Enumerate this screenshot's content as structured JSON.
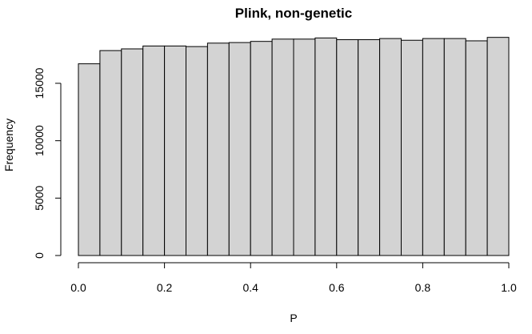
{
  "chart_data": {
    "type": "bar",
    "title": "Plink, non-genetic",
    "xlabel": "P",
    "ylabel": "Frequency",
    "bin_edges": [
      0,
      0.05,
      0.1,
      0.15,
      0.2,
      0.25,
      0.3,
      0.35,
      0.4,
      0.45,
      0.5,
      0.55,
      0.6,
      0.65,
      0.7,
      0.75,
      0.8,
      0.85,
      0.9,
      0.95,
      1.0
    ],
    "values": [
      16700,
      17850,
      18000,
      18250,
      18250,
      18200,
      18500,
      18550,
      18650,
      18850,
      18850,
      18950,
      18800,
      18800,
      18900,
      18750,
      18900,
      18900,
      18700,
      19000
    ],
    "xlim": [
      0,
      1
    ],
    "ylim": [
      0,
      19000
    ],
    "x_ticks": [
      0.0,
      0.2,
      0.4,
      0.6,
      0.8,
      1.0
    ],
    "x_tick_labels": [
      "0.0",
      "0.2",
      "0.4",
      "0.6",
      "0.8",
      "1.0"
    ],
    "y_ticks": [
      0,
      5000,
      10000,
      15000
    ],
    "y_tick_labels": [
      "0",
      "5000",
      "10000",
      "15000"
    ],
    "colors": {
      "bar_fill": "#d3d3d3",
      "bar_stroke": "#000000"
    }
  }
}
